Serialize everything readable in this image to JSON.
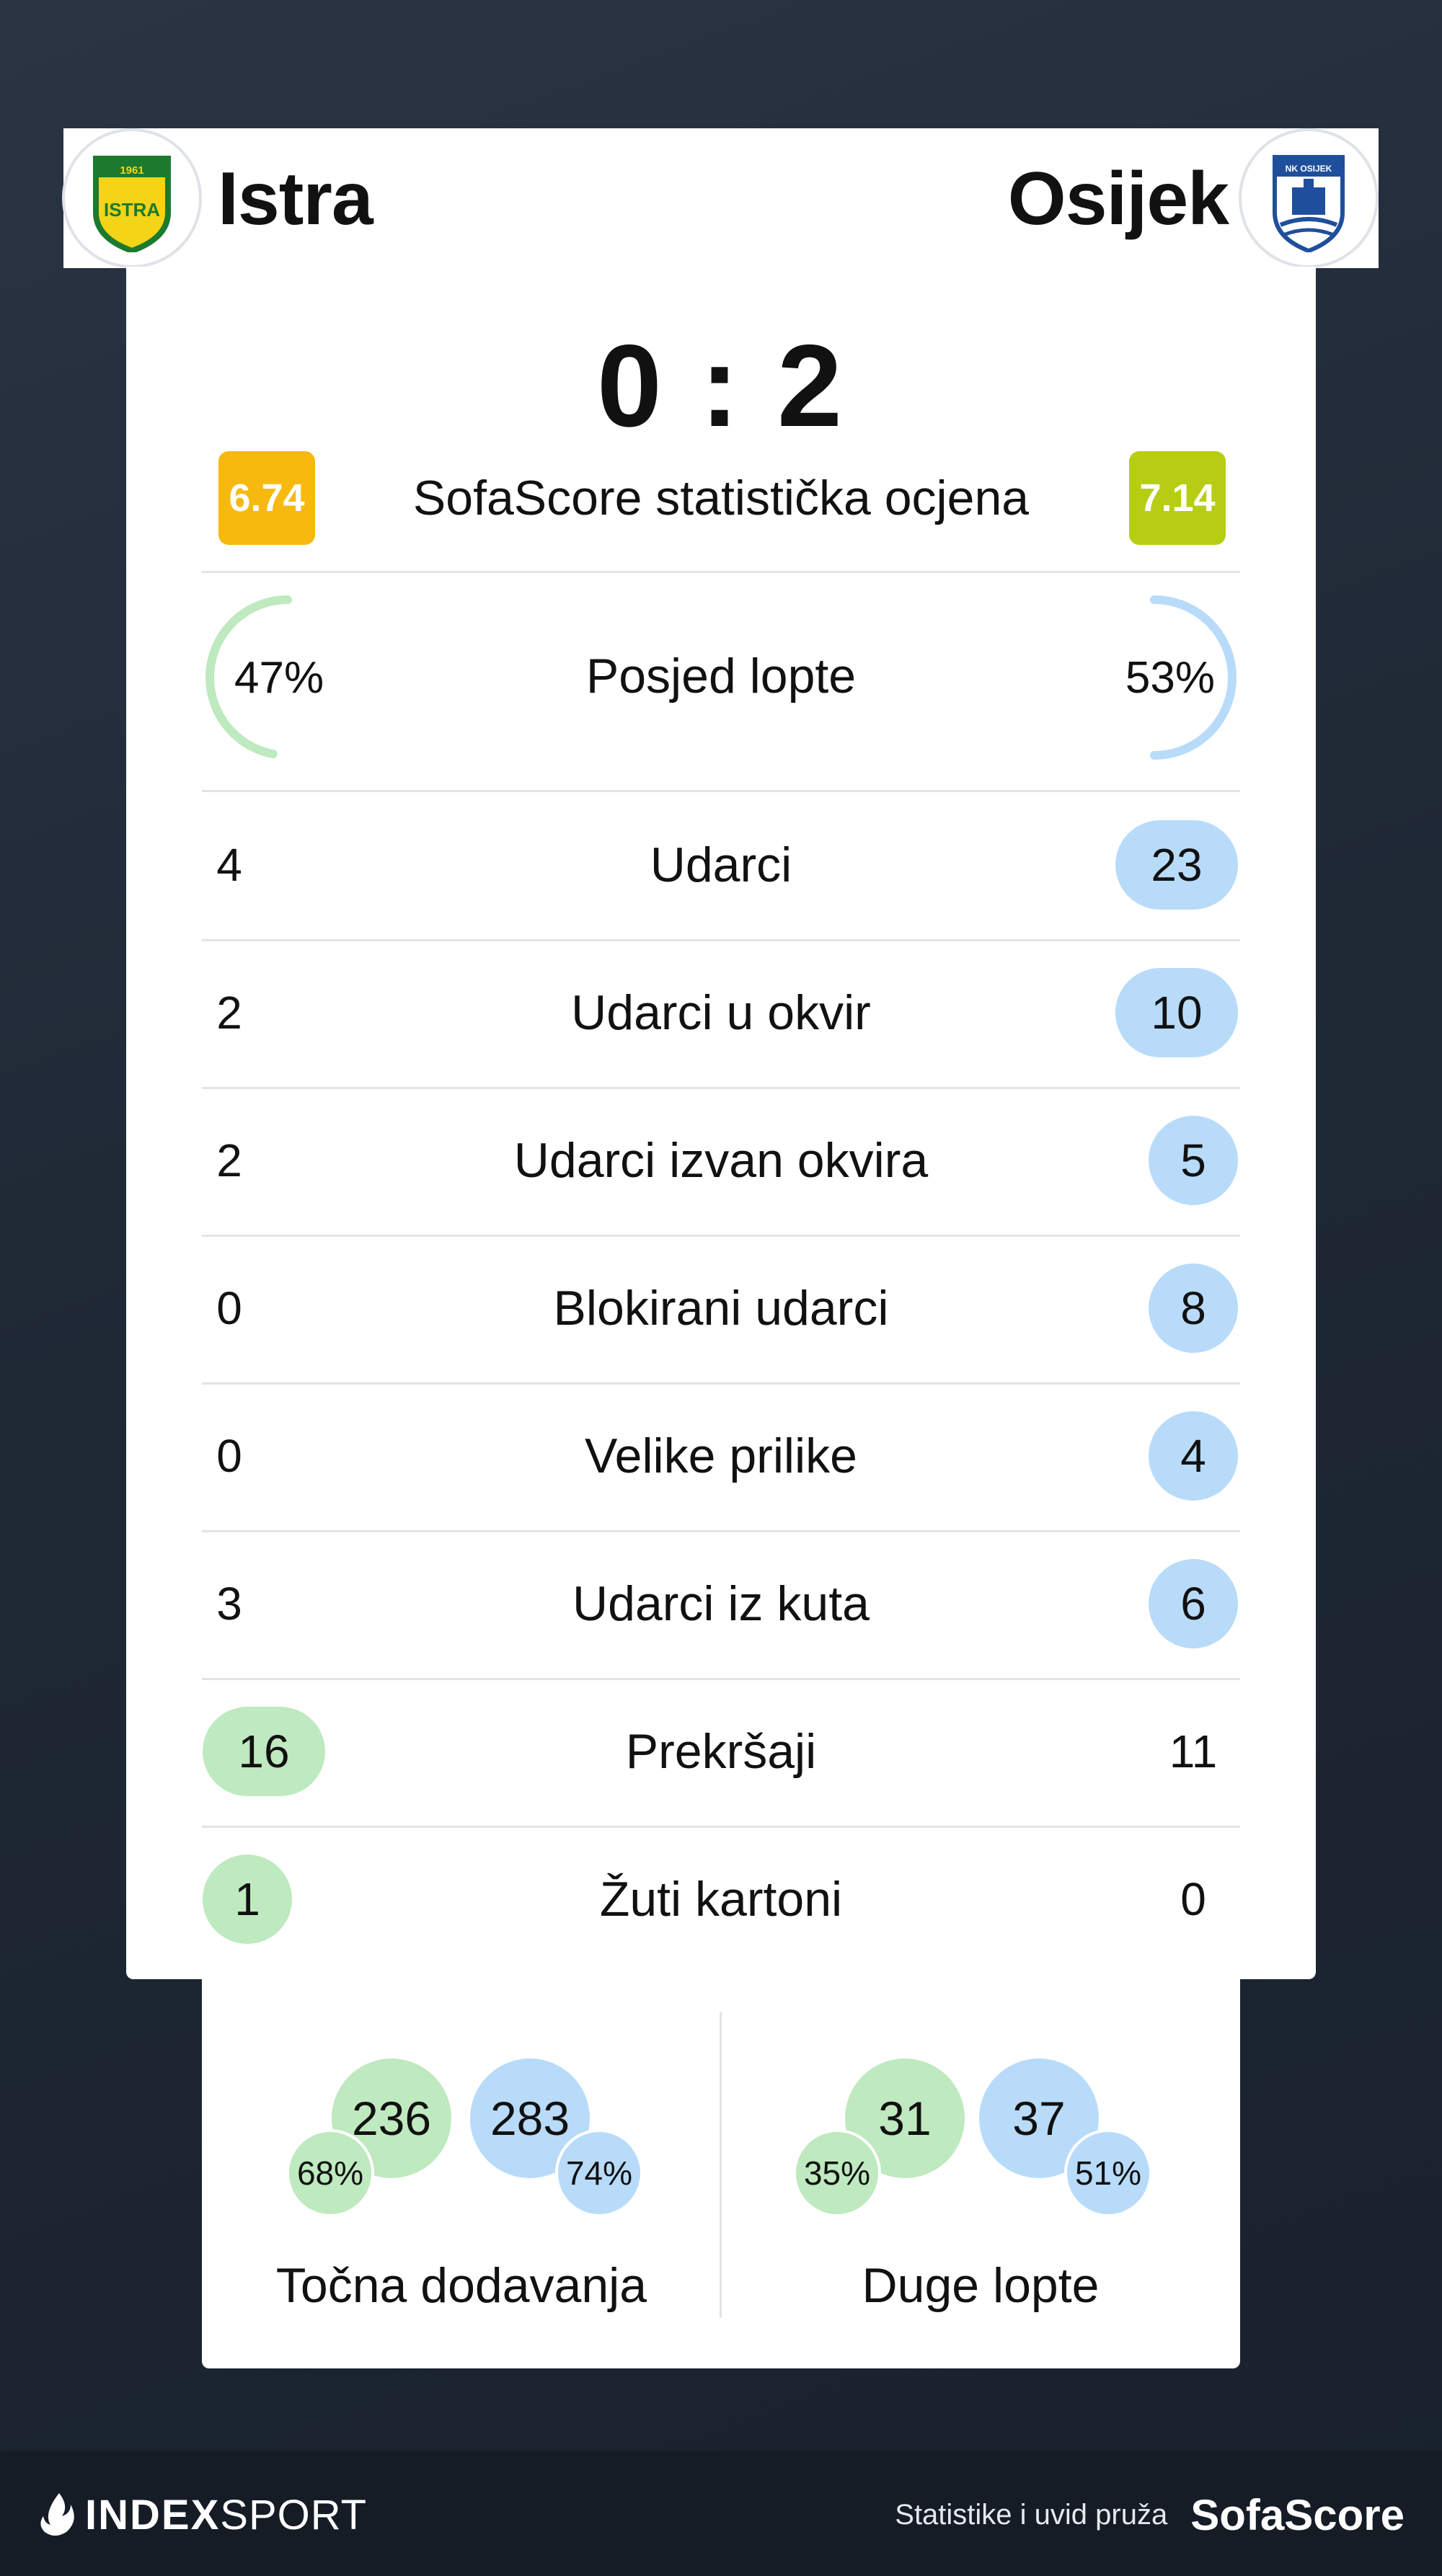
{
  "header": {
    "home_team": "Istra",
    "away_team": "Osijek",
    "home_crest_text": "ISTRA",
    "home_crest_year": "1961",
    "away_crest_text": "NK OSIJEK"
  },
  "score": "0 : 2",
  "rating": {
    "label": "SofaScore statistička ocjena",
    "home": "6.74",
    "away": "7.14",
    "home_color": "#f7b90e",
    "away_color": "#b7cd13"
  },
  "possession": {
    "label": "Posjed lopte",
    "home": "47%",
    "away": "53%",
    "home_fraction": 0.47,
    "away_fraction": 0.53
  },
  "stats": [
    {
      "label": "Udarci",
      "home": "4",
      "away": "23",
      "highlight": "away"
    },
    {
      "label": "Udarci u okvir",
      "home": "2",
      "away": "10",
      "highlight": "away"
    },
    {
      "label": "Udarci izvan okvira",
      "home": "2",
      "away": "5",
      "highlight": "away"
    },
    {
      "label": "Blokirani udarci",
      "home": "0",
      "away": "8",
      "highlight": "away"
    },
    {
      "label": "Velike prilike",
      "home": "0",
      "away": "4",
      "highlight": "away"
    },
    {
      "label": "Udarci iz kuta",
      "home": "3",
      "away": "6",
      "highlight": "away"
    },
    {
      "label": "Prekršaji",
      "home": "16",
      "away": "11",
      "highlight": "home"
    },
    {
      "label": "Žuti kartoni",
      "home": "1",
      "away": "0",
      "highlight": "home"
    }
  ],
  "passes": {
    "label": "Točna dodavanja",
    "home": "236",
    "home_pct": "68%",
    "away": "283",
    "away_pct": "74%"
  },
  "long_balls": {
    "label": "Duge lopte",
    "home": "31",
    "home_pct": "35%",
    "away": "37",
    "away_pct": "51%"
  },
  "colors": {
    "home_highlight": "#bfe9bf",
    "away_highlight": "#b8dbfa",
    "home_arc": "#bfe9bf",
    "away_arc": "#b8dbfa"
  },
  "footer": {
    "brand_bold": "INDEX",
    "brand_thin": "SPORT",
    "credit": "Statistike i uvid pruža",
    "credit_logo": "SofaScore"
  }
}
